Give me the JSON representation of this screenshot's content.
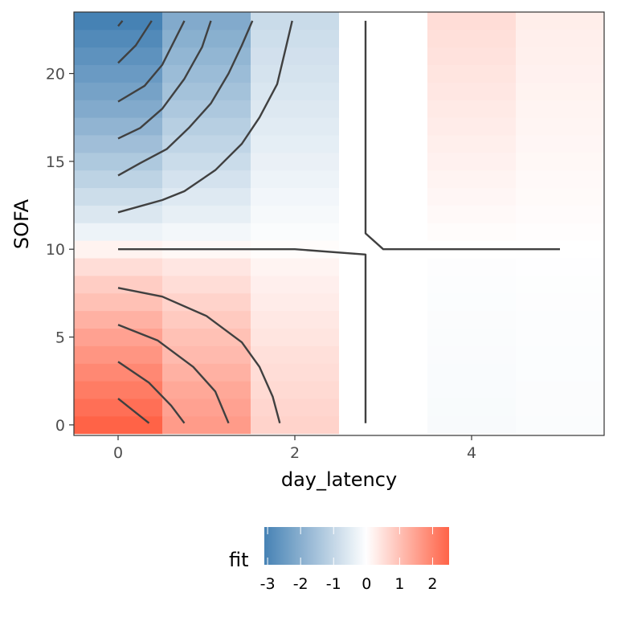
{
  "chart_data": {
    "type": "heatmap",
    "xlabel": "day_latency",
    "ylabel": "SOFA",
    "x_ticks": [
      0,
      2,
      4
    ],
    "y_ticks": [
      0,
      5,
      10,
      15,
      20
    ],
    "xlim": [
      -0.5,
      5.5
    ],
    "ylim": [
      -0.6,
      23.5
    ],
    "x": [
      0,
      1,
      2,
      3,
      4,
      5
    ],
    "y": [
      0,
      1,
      2,
      3,
      4,
      5,
      6,
      7,
      8,
      9,
      10,
      11,
      12,
      13,
      14,
      15,
      16,
      17,
      18,
      19,
      20,
      21,
      22,
      23
    ],
    "fit": [
      [
        2.5,
        1.6,
        0.7,
        0.0,
        -0.12,
        -0.08
      ],
      [
        2.3,
        1.5,
        0.65,
        0.0,
        -0.11,
        -0.07
      ],
      [
        2.1,
        1.4,
        0.6,
        0.0,
        -0.1,
        -0.07
      ],
      [
        1.9,
        1.25,
        0.55,
        0.0,
        -0.1,
        -0.06
      ],
      [
        1.7,
        1.1,
        0.5,
        0.0,
        -0.09,
        -0.06
      ],
      [
        1.5,
        1.0,
        0.42,
        0.0,
        -0.08,
        -0.05
      ],
      [
        1.25,
        0.85,
        0.37,
        0.0,
        -0.07,
        -0.05
      ],
      [
        1.0,
        0.7,
        0.3,
        0.0,
        -0.06,
        -0.04
      ],
      [
        0.8,
        0.55,
        0.25,
        0.0,
        -0.05,
        -0.03
      ],
      [
        0.55,
        0.4,
        0.18,
        0.0,
        -0.04,
        -0.02
      ],
      [
        0.2,
        0.12,
        0.05,
        0.0,
        0.0,
        0.0
      ],
      [
        -0.3,
        -0.2,
        -0.08,
        0.0,
        0.05,
        0.03
      ],
      [
        -0.6,
        -0.4,
        -0.15,
        0.0,
        0.1,
        0.06
      ],
      [
        -0.85,
        -0.55,
        -0.22,
        0.0,
        0.14,
        0.08
      ],
      [
        -1.1,
        -0.72,
        -0.3,
        0.0,
        0.18,
        0.1
      ],
      [
        -1.35,
        -0.88,
        -0.36,
        0.0,
        0.22,
        0.12
      ],
      [
        -1.6,
        -1.05,
        -0.43,
        0.0,
        0.26,
        0.14
      ],
      [
        -1.85,
        -1.2,
        -0.5,
        0.0,
        0.3,
        0.16
      ],
      [
        -2.1,
        -1.37,
        -0.57,
        0.0,
        0.34,
        0.18
      ],
      [
        -2.3,
        -1.52,
        -0.63,
        0.0,
        0.38,
        0.2
      ],
      [
        -2.5,
        -1.67,
        -0.7,
        0.0,
        0.42,
        0.22
      ],
      [
        -2.7,
        -1.82,
        -0.76,
        0.0,
        0.46,
        0.24
      ],
      [
        -2.9,
        -1.97,
        -0.83,
        0.0,
        0.5,
        0.26
      ],
      [
        -3.1,
        -2.1,
        -0.9,
        0.0,
        0.54,
        0.28
      ]
    ],
    "contour_lines": [
      [
        [
          0,
          1.5
        ],
        [
          0.35,
          0.1
        ]
      ],
      [
        [
          0,
          3.6
        ],
        [
          0.35,
          2.4
        ],
        [
          0.6,
          1.1
        ],
        [
          0.75,
          0.1
        ]
      ],
      [
        [
          0,
          5.7
        ],
        [
          0.45,
          4.8
        ],
        [
          0.85,
          3.3
        ],
        [
          1.1,
          1.9
        ],
        [
          1.25,
          0.1
        ]
      ],
      [
        [
          0,
          7.8
        ],
        [
          0.5,
          7.3
        ],
        [
          1.0,
          6.2
        ],
        [
          1.4,
          4.7
        ],
        [
          1.6,
          3.3
        ],
        [
          1.75,
          1.6
        ],
        [
          1.83,
          0.1
        ]
      ],
      [
        [
          0,
          10.0
        ],
        [
          2.0,
          10.0
        ],
        [
          2.8,
          9.7
        ],
        [
          2.8,
          0.1
        ]
      ],
      [
        [
          2.8,
          23.0
        ],
        [
          2.8,
          10.9
        ],
        [
          3.0,
          10.0
        ],
        [
          5.0,
          10.0
        ]
      ],
      [
        [
          0,
          12.1
        ],
        [
          0.5,
          12.8
        ],
        [
          0.75,
          13.3
        ],
        [
          1.1,
          14.5
        ],
        [
          1.4,
          16.0
        ],
        [
          1.6,
          17.5
        ],
        [
          1.8,
          19.4
        ],
        [
          1.9,
          21.5
        ],
        [
          1.97,
          23.0
        ]
      ],
      [
        [
          0,
          14.2
        ],
        [
          0.25,
          14.9
        ],
        [
          0.55,
          15.7
        ],
        [
          0.8,
          16.9
        ],
        [
          1.05,
          18.3
        ],
        [
          1.25,
          20.0
        ],
        [
          1.4,
          21.6
        ],
        [
          1.52,
          23.0
        ]
      ],
      [
        [
          0,
          16.3
        ],
        [
          0.25,
          16.9
        ],
        [
          0.5,
          18.0
        ],
        [
          0.75,
          19.7
        ],
        [
          0.95,
          21.5
        ],
        [
          1.05,
          23.0
        ]
      ],
      [
        [
          0,
          18.4
        ],
        [
          0.3,
          19.3
        ],
        [
          0.5,
          20.5
        ],
        [
          0.65,
          22.0
        ],
        [
          0.75,
          23.0
        ]
      ],
      [
        [
          0,
          20.6
        ],
        [
          0.2,
          21.6
        ],
        [
          0.38,
          23.0
        ]
      ],
      [
        [
          0,
          22.7
        ],
        [
          0.05,
          23.0
        ]
      ]
    ],
    "legend": {
      "title": "fit",
      "position": "bottom",
      "limits": [
        -3.1,
        2.5
      ],
      "breaks": [
        -3,
        -2,
        -1,
        0,
        1,
        2
      ],
      "labels": [
        "-3",
        "-2",
        "-1",
        "0",
        "1",
        "2"
      ]
    },
    "colors": {
      "low": "#4682B4",
      "mid": "#ffffff",
      "high": "#FF6347",
      "contour": "#404040",
      "panel_border": "#333333"
    },
    "grid": false
  }
}
